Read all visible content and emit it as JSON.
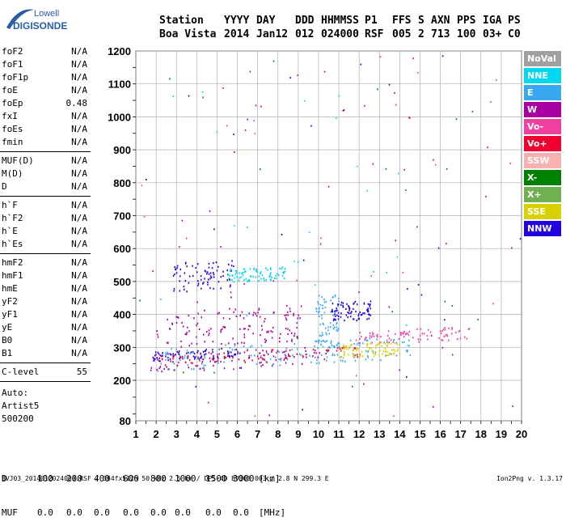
{
  "logo": {
    "line1": "Lowell",
    "line2": "DIGISONDE",
    "accent": "#2a5ca8"
  },
  "header": {
    "labels": [
      "Station",
      "YYYY",
      "DAY",
      "DDD",
      "HHMMSS",
      "P1",
      "FFS",
      "S",
      "AXN",
      "PPS",
      "IGA",
      "PS"
    ],
    "values": [
      "Boa Vista",
      "2014",
      "Jan12",
      "012",
      "024000",
      "RSF",
      "005",
      "2",
      "713",
      "100",
      "03+",
      "C0"
    ]
  },
  "params": {
    "group1": [
      {
        "label": "foF2",
        "value": "N/A"
      },
      {
        "label": "foF1",
        "value": "N/A"
      },
      {
        "label": "foF1p",
        "value": "N/A"
      },
      {
        "label": "foE",
        "value": "N/A"
      },
      {
        "label": "foEp",
        "value": "0.48"
      },
      {
        "label": "fxI",
        "value": "N/A"
      },
      {
        "label": "foEs",
        "value": "N/A"
      },
      {
        "label": "fmin",
        "value": "N/A"
      }
    ],
    "group2": [
      {
        "label": "MUF(D)",
        "value": "N/A"
      },
      {
        "label": "M(D)",
        "value": "N/A"
      },
      {
        "label": "D",
        "value": "N/A"
      }
    ],
    "group3": [
      {
        "label": "h`F",
        "value": "N/A"
      },
      {
        "label": "h`F2",
        "value": "N/A"
      },
      {
        "label": "h`E",
        "value": "N/A"
      },
      {
        "label": "h`Es",
        "value": "N/A"
      }
    ],
    "group4": [
      {
        "label": "hmF2",
        "value": "N/A"
      },
      {
        "label": "hmF1",
        "value": "N/A"
      },
      {
        "label": "hmE",
        "value": "N/A"
      },
      {
        "label": "yF2",
        "value": "N/A"
      },
      {
        "label": "yF1",
        "value": "N/A"
      },
      {
        "label": "yE",
        "value": "N/A"
      },
      {
        "label": "B0",
        "value": "N/A"
      },
      {
        "label": "B1",
        "value": "N/A"
      }
    ],
    "group5": [
      {
        "label": "C-level",
        "value": "55"
      }
    ]
  },
  "auto": {
    "line1": "Auto:",
    "line2": "Artist5",
    "line3": "500200"
  },
  "table": {
    "d_label": "D",
    "d_values": [
      "100",
      "200",
      "400",
      "600",
      "800",
      "1000",
      "1500",
      "3000"
    ],
    "d_unit": "[km]",
    "muf_label": "MUF",
    "muf_values": [
      "0.0",
      "0.0",
      "0.0",
      "0.0",
      "0.0",
      "0.0",
      "0.0",
      "0.0"
    ],
    "muf_unit": "[MHz]"
  },
  "footer": {
    "left": "BVJ03_2014012024000.RSF / 384fx512h 50 kHz 2.5 km / DPS-4D BVJ03 003 / 2.8 N 299.3 E",
    "right": "Ion2Png v. 1.3.17"
  },
  "legend": [
    {
      "label": "NoVal",
      "color": "#a0a0a0"
    },
    {
      "label": "NNE",
      "color": "#00d8f0"
    },
    {
      "label": "E",
      "color": "#38a8f0"
    },
    {
      "label": "W",
      "color": "#a800a0"
    },
    {
      "label": "Vo-",
      "color": "#f040a0"
    },
    {
      "label": "Vo+",
      "color": "#f00030"
    },
    {
      "label": "SSW",
      "color": "#f8b0b0"
    },
    {
      "label": "X-",
      "color": "#008000"
    },
    {
      "label": "X+",
      "color": "#70b050"
    },
    {
      "label": "SSE",
      "color": "#d8d000"
    },
    {
      "label": "NNW",
      "color": "#2000e0"
    }
  ],
  "chart_data": {
    "type": "scatter",
    "title": "",
    "xlabel": "",
    "ylabel": "",
    "xlim": [
      1,
      20
    ],
    "ylim": [
      80,
      1200
    ],
    "x_ticks": [
      1,
      2,
      3,
      4,
      5,
      6,
      7,
      8,
      9,
      10,
      11,
      12,
      13,
      14,
      15,
      16,
      17,
      18,
      19,
      20
    ],
    "y_ticks": [
      80,
      200,
      300,
      400,
      500,
      600,
      700,
      800,
      900,
      1000,
      1100,
      1200
    ],
    "grid": true,
    "traces": [
      {
        "name": "W",
        "color": "#a800a0",
        "x_range": [
          1.6,
          10
        ],
        "y_range": [
          225,
          280
        ]
      },
      {
        "name": "W",
        "color": "#a800a0",
        "x_range": [
          2,
          9.2
        ],
        "y_range": [
          300,
          410
        ]
      },
      {
        "name": "NNW",
        "color": "#2000e0",
        "x_range": [
          1.8,
          6.2
        ],
        "y_range": [
          260,
          290
        ]
      },
      {
        "name": "NNW",
        "color": "#2000e0",
        "x_range": [
          2.8,
          5.8
        ],
        "y_range": [
          470,
          560
        ]
      },
      {
        "name": "NNW",
        "color": "#2000e0",
        "x_range": [
          10.6,
          12.6
        ],
        "y_range": [
          380,
          440
        ]
      },
      {
        "name": "E",
        "color": "#38a8f0",
        "x_range": [
          2,
          14.5
        ],
        "y_range": [
          230,
          300
        ]
      },
      {
        "name": "E",
        "color": "#38a8f0",
        "x_range": [
          9.8,
          11
        ],
        "y_range": [
          300,
          460
        ]
      },
      {
        "name": "NNE",
        "color": "#00d8f0",
        "x_range": [
          5.5,
          8.4
        ],
        "y_range": [
          500,
          540
        ]
      },
      {
        "name": "Vo+",
        "color": "#f00030",
        "x_range": [
          2,
          12
        ],
        "y_range": [
          240,
          280
        ]
      },
      {
        "name": "Vo-",
        "color": "#f040a0",
        "x_range": [
          12,
          17.5
        ],
        "y_range": [
          310,
          350
        ]
      },
      {
        "name": "SSE",
        "color": "#d8d000",
        "x_range": [
          11,
          14
        ],
        "y_range": [
          270,
          310
        ]
      }
    ]
  }
}
